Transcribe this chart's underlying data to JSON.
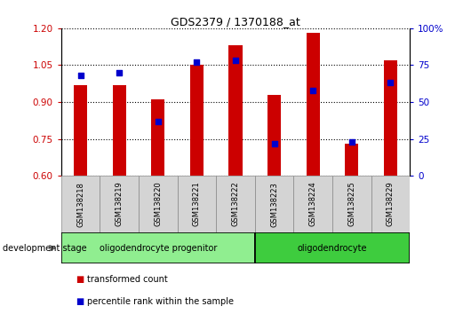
{
  "title": "GDS2379 / 1370188_at",
  "samples": [
    "GSM138218",
    "GSM138219",
    "GSM138220",
    "GSM138221",
    "GSM138222",
    "GSM138223",
    "GSM138224",
    "GSM138225",
    "GSM138229"
  ],
  "transformed_counts": [
    0.97,
    0.97,
    0.91,
    1.05,
    1.13,
    0.93,
    1.18,
    0.73,
    1.07
  ],
  "percentile_ranks": [
    68,
    70,
    37,
    77,
    78,
    22,
    58,
    23,
    63
  ],
  "ylim": [
    0.6,
    1.2
  ],
  "y2lim": [
    0,
    100
  ],
  "y_ticks": [
    0.6,
    0.75,
    0.9,
    1.05,
    1.2
  ],
  "y2_ticks": [
    0,
    25,
    50,
    75,
    100
  ],
  "y2_tick_labels": [
    "0",
    "25",
    "50",
    "75",
    "100%"
  ],
  "bar_color": "#cc0000",
  "dot_color": "#0000cc",
  "groups": [
    {
      "label": "oligodendrocyte progenitor",
      "indices": [
        0,
        1,
        2,
        3,
        4
      ],
      "color": "#90EE90"
    },
    {
      "label": "oligodendrocyte",
      "indices": [
        5,
        6,
        7,
        8
      ],
      "color": "#3ECC3E"
    }
  ],
  "group_label": "development stage",
  "legend_items": [
    {
      "label": "transformed count",
      "color": "#cc0000"
    },
    {
      "label": "percentile rank within the sample",
      "color": "#0000cc"
    }
  ],
  "bar_bottom": 0.6,
  "tick_label_color_left": "#cc0000",
  "tick_label_color_right": "#0000cc",
  "label_bg_color": "#d4d4d4",
  "label_border_color": "#888888"
}
